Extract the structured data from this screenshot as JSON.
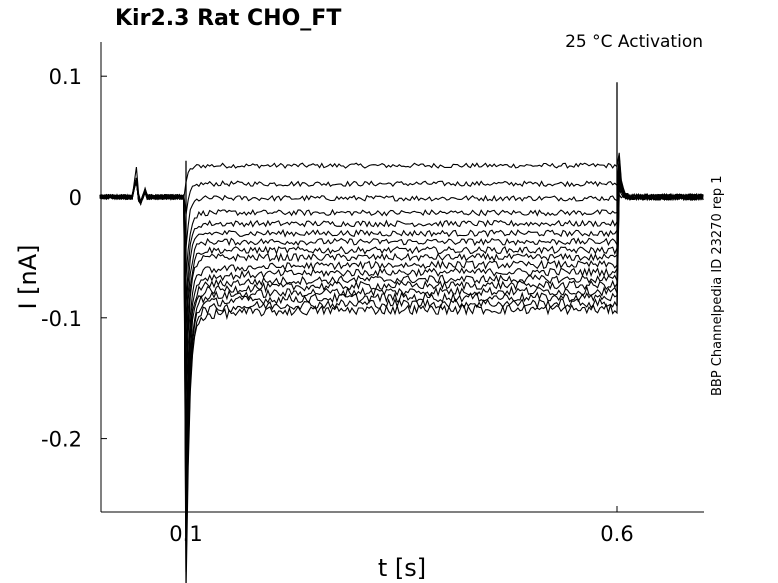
{
  "chart_data": {
    "type": "line",
    "title": "Kir2.3  Rat  CHO_FT",
    "subtitle": "25 °C  Activation",
    "side_label": "BBP Channelpedia ID 23270 rep 1",
    "xlabel": "t [s]",
    "ylabel": "I [nA]",
    "xlim": [
      0.0,
      0.7
    ],
    "ylim": [
      -0.26,
      0.13
    ],
    "x_ticks": [
      0.1,
      0.6
    ],
    "x_tick_labels": [
      "0.1",
      "0.6"
    ],
    "y_ticks": [
      0.1,
      0,
      -0.1,
      -0.2
    ],
    "y_tick_labels": [
      "0.1",
      "0",
      "-0.1",
      "-0.2"
    ],
    "grid": false,
    "legend": "none",
    "line_color": "#000000",
    "pulse": {
      "start": 0.1,
      "end": 0.6
    },
    "onset_peak": -0.228,
    "offset_peak": 0.095,
    "artifact": {
      "t": 0.042,
      "peak": 0.027
    },
    "series_levels": [
      0.026,
      0.011,
      -0.001,
      -0.013,
      -0.022,
      -0.03,
      -0.037,
      -0.044,
      -0.05,
      -0.056,
      -0.062,
      -0.068,
      -0.073,
      -0.078,
      -0.083,
      -0.088,
      -0.093
    ]
  }
}
